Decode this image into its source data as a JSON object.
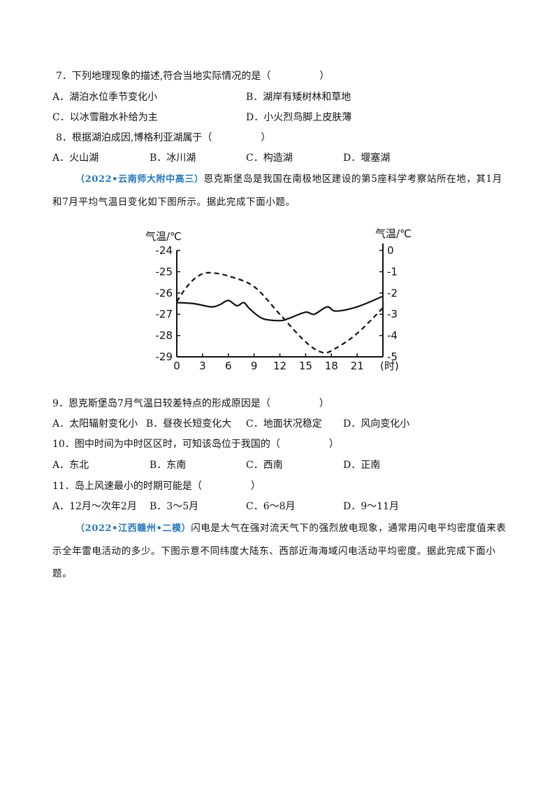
{
  "questions": [
    {
      "stem": "7．下列地理现象的描述,符合当地实际情况的是（　　　　　）",
      "options": [
        "A．湖泊水位季节变化小",
        "B．湖岸有矮树林和草地",
        "C．以冰雪融水补给为主",
        "D．小火烈鸟脚上皮肤薄"
      ]
    },
    {
      "stem": "8．根据湖泊成因,博格利亚湖属于（　　　　　）",
      "options": [
        "A．火山湖",
        "B．冰川湖",
        "C．构造湖",
        "D．堰塞湖"
      ]
    },
    {
      "stem": "9．恩克斯堡岛7月气温日较差特点的形成原因是（　　　　　）",
      "options": [
        "A．太阳辐射变化小",
        "B．昼夜长短变化大",
        "C．地面状况稳定",
        "D．风向变化小"
      ]
    },
    {
      "stem": "10．图中时间为中时区区时，可知该岛位于我国的（　　　　　）",
      "options": [
        "A．东北",
        "B．东南",
        "C．西南",
        "D．正南"
      ]
    },
    {
      "stem": "11．岛上风速最小的时期可能是（　　　　　）",
      "options": [
        "A．12月～次年2月",
        "B．3～5月",
        "C．6～8月",
        "D．9～11月"
      ]
    }
  ],
  "passage1": {
    "source": "（2022•云南师大附中高三）",
    "line1": "恩克斯堡岛是我国在南极地区建设的第5座科学考察站所在地，其1月",
    "line2": "和7月平均气温日变化如下图所示。据此完成下面小题。"
  },
  "passage2": {
    "source": "（2022•江西赣州•二模）",
    "line1": "闪电是大气在强对流天气下的强烈放电现象，通常用闪电平均密度值来表",
    "line2": "示全年雷电活动的多少。下图示意不同纬度大陆东、西部近海海域闪电活动平均密度。据此完成下面小",
    "line3": "题。"
  },
  "chart_data": {
    "type": "line",
    "left_axis": {
      "label": "气温/℃",
      "ylim": [
        -29,
        -24
      ],
      "ticks": [
        "-24",
        "-25",
        "-26",
        "-27",
        "-28",
        "-29"
      ]
    },
    "right_axis": {
      "label": "气温/℃",
      "ylim": [
        -5,
        0
      ],
      "ticks": [
        "0",
        "-1",
        "-2",
        "-3",
        "-4",
        "-5"
      ]
    },
    "x_axis": {
      "label": "(时)",
      "ticks": [
        "0",
        "3",
        "6",
        "9",
        "12",
        "15",
        "18",
        "21"
      ],
      "xlim": [
        0,
        24
      ]
    },
    "series": [
      {
        "style": "solid",
        "axis": "left",
        "points": [
          [
            0,
            -26.45
          ],
          [
            2,
            -26.5
          ],
          [
            4,
            -26.65
          ],
          [
            5,
            -26.55
          ],
          [
            6,
            -26.35
          ],
          [
            7,
            -26.6
          ],
          [
            7.8,
            -26.45
          ],
          [
            8.5,
            -26.75
          ],
          [
            10,
            -27.2
          ],
          [
            12,
            -27.3
          ],
          [
            13,
            -27.2
          ],
          [
            15,
            -26.9
          ],
          [
            16,
            -27.0
          ],
          [
            17.5,
            -26.65
          ],
          [
            18.5,
            -26.85
          ],
          [
            21,
            -26.65
          ],
          [
            24,
            -26.15
          ]
        ]
      },
      {
        "style": "dashed",
        "axis": "right",
        "points": [
          [
            0,
            -2.4
          ],
          [
            1,
            -1.8
          ],
          [
            2,
            -1.35
          ],
          [
            3,
            -1.1
          ],
          [
            4,
            -1.05
          ],
          [
            6,
            -1.2
          ],
          [
            9,
            -1.7
          ],
          [
            12,
            -3.0
          ],
          [
            15,
            -4.3
          ],
          [
            17,
            -4.8
          ],
          [
            18.5,
            -4.6
          ],
          [
            21,
            -3.9
          ],
          [
            24,
            -2.7
          ]
        ]
      }
    ]
  }
}
